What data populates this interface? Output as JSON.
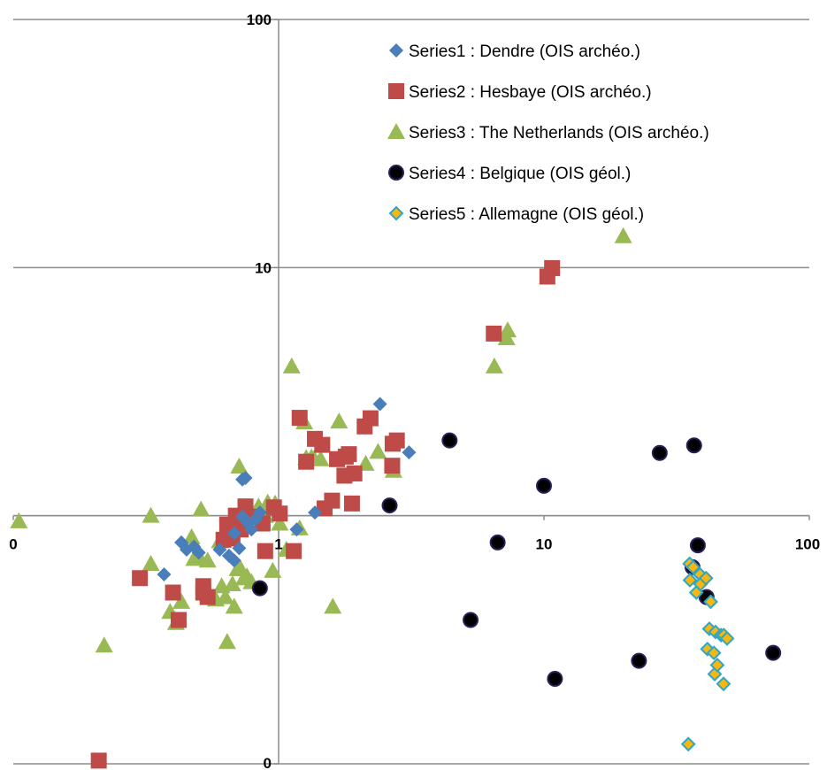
{
  "chart_data": {
    "type": "scatter",
    "title": "",
    "xlabel": "",
    "ylabel": "",
    "xscale": "log",
    "yscale": "log",
    "xlim": [
      0.1,
      100
    ],
    "ylim": [
      0.1,
      100
    ],
    "x_tick_labels": [
      "0",
      "1",
      "10",
      "100"
    ],
    "y_tick_labels": [
      "0",
      "1",
      "10",
      "100"
    ],
    "x_tick_values": [
      0.1,
      1,
      10,
      100
    ],
    "y_tick_values": [
      0.1,
      1,
      10,
      100
    ],
    "grid": "horizontal",
    "legend_position": "top-right",
    "series": [
      {
        "name": "Series1 : Dendre (OIS archéo.)",
        "marker": "diamond",
        "color": "#4a7ebb",
        "points": [
          [
            0.37,
            0.58
          ],
          [
            0.43,
            0.78
          ],
          [
            0.45,
            0.73
          ],
          [
            0.48,
            0.75
          ],
          [
            0.5,
            0.71
          ],
          [
            0.6,
            0.73
          ],
          [
            0.65,
            0.69
          ],
          [
            0.68,
            0.66
          ],
          [
            0.68,
            0.85
          ],
          [
            0.71,
            0.74
          ],
          [
            0.73,
            0.99
          ],
          [
            0.73,
            1.4
          ],
          [
            0.75,
            1.42
          ],
          [
            0.77,
            0.93
          ],
          [
            0.79,
            0.88
          ],
          [
            0.82,
            0.97
          ],
          [
            0.85,
            1.03
          ],
          [
            1.17,
            0.88
          ],
          [
            1.37,
            1.03
          ],
          [
            2.41,
            2.82
          ],
          [
            3.1,
            1.8
          ]
        ]
      },
      {
        "name": "Series2 : Hesbaye (OIS archéo.)",
        "marker": "square",
        "color": "#be4b48",
        "points": [
          [
            0.21,
            0.103
          ],
          [
            0.3,
            0.56
          ],
          [
            0.4,
            0.49
          ],
          [
            0.42,
            0.38
          ],
          [
            0.52,
            0.49
          ],
          [
            0.52,
            0.52
          ],
          [
            0.54,
            0.47
          ],
          [
            0.62,
            0.8
          ],
          [
            0.64,
            0.92
          ],
          [
            0.67,
            0.81
          ],
          [
            0.69,
            1.0
          ],
          [
            0.72,
            0.88
          ],
          [
            0.75,
            1.09
          ],
          [
            0.79,
            0.99
          ],
          [
            0.87,
            0.93
          ],
          [
            0.89,
            0.72
          ],
          [
            0.96,
            1.08
          ],
          [
            1.01,
            1.02
          ],
          [
            1.14,
            0.72
          ],
          [
            1.2,
            2.48
          ],
          [
            1.27,
            1.65
          ],
          [
            1.37,
            2.04
          ],
          [
            1.46,
            1.93
          ],
          [
            1.49,
            1.07
          ],
          [
            1.59,
            1.15
          ],
          [
            1.66,
            1.69
          ],
          [
            1.77,
            1.45
          ],
          [
            1.79,
            1.73
          ],
          [
            1.84,
            1.77
          ],
          [
            1.89,
            1.12
          ],
          [
            1.93,
            1.48
          ],
          [
            2.11,
            2.29
          ],
          [
            2.22,
            2.47
          ],
          [
            2.68,
            1.59
          ],
          [
            2.69,
            1.95
          ],
          [
            2.79,
            2.01
          ],
          [
            6.47,
            5.42
          ],
          [
            10.3,
            9.2
          ],
          [
            10.73,
            9.95
          ]
        ]
      },
      {
        "name": "Series3 : The Netherlands (OIS archéo.)",
        "marker": "triangle",
        "color": "#98b954",
        "points": [
          [
            0.105,
            0.95
          ],
          [
            0.22,
            0.3
          ],
          [
            0.33,
            1.0
          ],
          [
            0.33,
            0.64
          ],
          [
            0.39,
            0.41
          ],
          [
            0.41,
            0.37
          ],
          [
            0.43,
            0.45
          ],
          [
            0.47,
            0.82
          ],
          [
            0.48,
            0.67
          ],
          [
            0.5,
            0.69
          ],
          [
            0.51,
            1.06
          ],
          [
            0.54,
            0.66
          ],
          [
            0.58,
            0.46
          ],
          [
            0.6,
            0.79
          ],
          [
            0.61,
            0.52
          ],
          [
            0.63,
            0.47
          ],
          [
            0.64,
            0.31
          ],
          [
            0.67,
            0.53
          ],
          [
            0.68,
            0.43
          ],
          [
            0.7,
            0.61
          ],
          [
            0.71,
            1.58
          ],
          [
            0.72,
            0.61
          ],
          [
            0.74,
            0.56
          ],
          [
            0.76,
            0.57
          ],
          [
            0.79,
            0.54
          ],
          [
            0.8,
            0.99
          ],
          [
            0.84,
            1.09
          ],
          [
            0.86,
            1.0
          ],
          [
            0.89,
            1.0
          ],
          [
            0.91,
            1.13
          ],
          [
            0.95,
            0.6
          ],
          [
            0.97,
            1.12
          ],
          [
            1.01,
            0.93
          ],
          [
            1.07,
            0.73
          ],
          [
            1.12,
            4.0
          ],
          [
            1.2,
            0.89
          ],
          [
            1.25,
            2.38
          ],
          [
            1.27,
            1.71
          ],
          [
            1.33,
            1.72
          ],
          [
            1.36,
            1.7
          ],
          [
            1.44,
            1.69
          ],
          [
            1.6,
            0.43
          ],
          [
            1.69,
            2.4
          ],
          [
            2.13,
            1.62
          ],
          [
            2.37,
            1.81
          ],
          [
            2.71,
            1.52
          ],
          [
            6.5,
            4.0
          ],
          [
            7.23,
            5.2
          ],
          [
            7.3,
            5.59
          ],
          [
            19.9,
            13.4
          ]
        ]
      },
      {
        "name": "Series4 : Belgique (OIS géol.)",
        "marker": "circle",
        "color": "#000000",
        "points": [
          [
            0.85,
            0.51
          ],
          [
            2.62,
            1.1
          ],
          [
            4.41,
            2.01
          ],
          [
            5.29,
            0.38
          ],
          [
            6.69,
            0.78
          ],
          [
            10.0,
            1.32
          ],
          [
            11.0,
            0.22
          ],
          [
            22.8,
            0.26
          ],
          [
            27.3,
            1.79
          ],
          [
            36.3,
            0.62
          ],
          [
            36.8,
            1.92
          ],
          [
            38.0,
            0.76
          ],
          [
            41.0,
            0.47
          ],
          [
            73.1,
            0.28
          ]
        ]
      },
      {
        "name": "Series5 : Allemagne (OIS géol.)",
        "marker": "diamond",
        "color": "#f9b60f",
        "edge_color": "#2fa6c6",
        "points": [
          [
            35.4,
            0.64
          ],
          [
            35.5,
            0.55
          ],
          [
            36.5,
            0.62
          ],
          [
            37.5,
            0.49
          ],
          [
            38.7,
            0.58
          ],
          [
            38.9,
            0.53
          ],
          [
            40.8,
            0.56
          ],
          [
            41.3,
            0.29
          ],
          [
            42.0,
            0.35
          ],
          [
            42.5,
            0.45
          ],
          [
            43.7,
            0.28
          ],
          [
            44.0,
            0.23
          ],
          [
            44.3,
            0.34
          ],
          [
            45.0,
            0.25
          ],
          [
            46.5,
            0.33
          ],
          [
            47.5,
            0.21
          ],
          [
            47.6,
            0.33
          ],
          [
            49.0,
            0.32
          ],
          [
            35.0,
            0.12
          ]
        ]
      }
    ]
  }
}
